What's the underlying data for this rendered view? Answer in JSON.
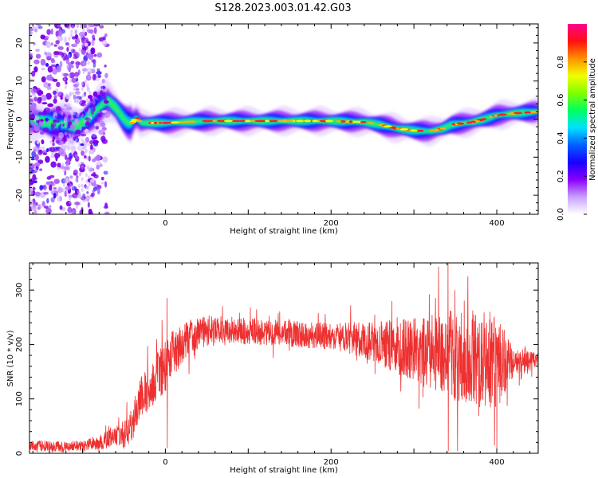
{
  "title": "S128.2023.003.01.42.G03",
  "chart_data": [
    {
      "type": "heatmap",
      "xlabel": "Height of straight line (km)",
      "ylabel": "Frequency (Hz)",
      "xlim": [
        -164,
        450
      ],
      "ylim": [
        -25,
        25
      ],
      "xticks": [
        0,
        200,
        400
      ],
      "yticks": [
        -20,
        -10,
        0,
        10,
        20
      ],
      "colorbar": {
        "label": "Normalized spectral amplitude",
        "range": [
          0,
          1
        ],
        "ticks": [
          0.0,
          0.2,
          0.4,
          0.6,
          0.8
        ],
        "colormap": [
          "#ffffff",
          "#c9a0ff",
          "#8a00ff",
          "#1a00ff",
          "#0060ff",
          "#00e0ff",
          "#00ff60",
          "#80ff00",
          "#f0ff00",
          "#ff9000",
          "#ff1010",
          "#ff0090"
        ]
      },
      "ridge": {
        "x": [
          -164,
          -140,
          -120,
          -110,
          -100,
          -90,
          -80,
          -70,
          -60,
          -50,
          -45,
          -40,
          -35,
          -30,
          -20,
          0,
          50,
          100,
          150,
          200,
          240,
          260,
          280,
          300,
          320,
          335,
          345,
          355,
          370,
          385,
          400,
          420,
          440,
          450
        ],
        "frequency": [
          0,
          -1,
          -1.5,
          -2,
          -1,
          1,
          3,
          5,
          3,
          0,
          -1,
          -1,
          0.5,
          -1,
          -1,
          -1,
          -0.5,
          -0.5,
          -0.5,
          -0.5,
          -0.8,
          -1.5,
          -2.5,
          -3,
          -3.2,
          -2.5,
          -1.5,
          -1.2,
          -0.8,
          0,
          1,
          1.5,
          1.8,
          2
        ]
      }
    },
    {
      "type": "line",
      "xlabel": "Height of straight line (km)",
      "ylabel": "SNR (10 * v/v)",
      "xlim": [
        -164,
        450
      ],
      "ylim": [
        0,
        350
      ],
      "xticks": [
        0,
        200,
        400
      ],
      "yticks": [
        0,
        100,
        200,
        300
      ],
      "series": [
        {
          "color": "#ee3030",
          "mean": {
            "x": [
              -164,
              -130,
              -100,
              -80,
              -60,
              -50,
              -40,
              -30,
              -20,
              -10,
              0,
              10,
              20,
              30,
              50,
              100,
              150,
              200,
              230,
              250,
              300,
              350,
              380,
              400,
              410,
              420,
              440,
              450
            ],
            "y": [
              15,
              12,
              14,
              20,
              30,
              35,
              60,
              100,
              120,
              140,
              160,
              185,
              200,
              215,
              225,
              225,
              220,
              215,
              210,
              205,
              190,
              180,
              175,
              170,
              165,
              165,
              170,
              170
            ]
          },
          "spread": {
            "x": [
              -164,
              -100,
              -60,
              -40,
              0,
              30,
              100,
              200,
              250,
              300,
              350,
              400,
              410,
              420,
              450
            ],
            "y": [
              8,
              8,
              15,
              30,
              40,
              25,
              20,
              20,
              30,
              50,
              70,
              75,
              50,
              20,
              12
            ]
          },
          "spikes": [
            {
              "x": 2,
              "y": 285
            },
            {
              "x": 2,
              "y": 10
            },
            {
              "x": 341,
              "y": 350
            },
            {
              "x": 341,
              "y": 5
            },
            {
              "x": 365,
              "y": 325
            },
            {
              "x": 397,
              "y": 15
            }
          ]
        }
      ]
    }
  ]
}
